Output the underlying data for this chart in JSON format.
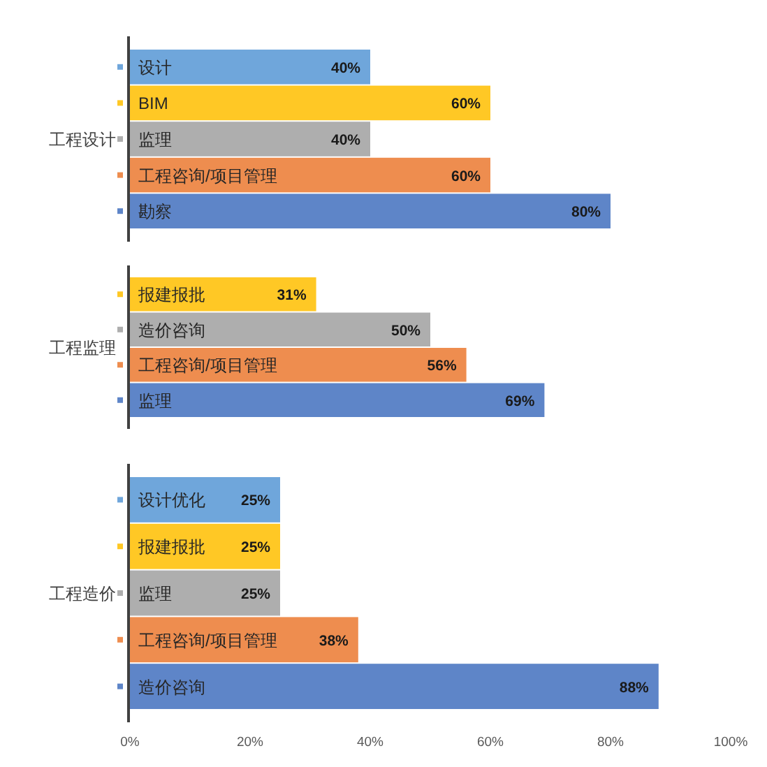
{
  "chart_data": [
    {
      "type": "bar",
      "orientation": "horizontal",
      "ylabel": "工程设计",
      "categories": [
        "设计",
        "BIM",
        "监理",
        "工程咨询/项目管理",
        "勘察"
      ],
      "values": [
        40,
        60,
        40,
        60,
        80
      ],
      "colors": [
        "#6fa6db",
        "#ffc825",
        "#aeaeae",
        "#ee8d4f",
        "#5e85c8"
      ],
      "value_labels": [
        "40%",
        "60%",
        "40%",
        "60%",
        "80%"
      ],
      "xlim": [
        0,
        100
      ],
      "tick_labels": "y"
    },
    {
      "type": "bar",
      "orientation": "horizontal",
      "ylabel": "工程监理",
      "categories": [
        "报建报批",
        "造价咨询",
        "工程咨询/项目管理",
        "监理"
      ],
      "values": [
        31,
        50,
        56,
        69
      ],
      "colors": [
        "#ffc825",
        "#aeaeae",
        "#ee8d4f",
        "#5e85c8"
      ],
      "value_labels": [
        "31%",
        "50%",
        "56%",
        "69%"
      ],
      "xlim": [
        0,
        100
      ],
      "tick_labels": "y"
    },
    {
      "type": "bar",
      "orientation": "horizontal",
      "ylabel": "工程造价",
      "categories": [
        "设计优化",
        "报建报批",
        "监理",
        "工程咨询/项目管理",
        "造价咨询"
      ],
      "values": [
        25,
        25,
        25,
        38,
        88
      ],
      "colors": [
        "#6fa6db",
        "#ffc825",
        "#aeaeae",
        "#ee8d4f",
        "#5e85c8"
      ],
      "value_labels": [
        "25%",
        "25%",
        "25%",
        "38%",
        "88%"
      ],
      "xlim": [
        0,
        100
      ],
      "xticks": [
        {
          "value": 0,
          "label": "0%"
        },
        {
          "value": 20,
          "label": "20%"
        },
        {
          "value": 40,
          "label": "40%"
        },
        {
          "value": 60,
          "label": "60%"
        },
        {
          "value": 80,
          "label": "80%"
        },
        {
          "value": 100,
          "label": "100%"
        }
      ]
    }
  ]
}
